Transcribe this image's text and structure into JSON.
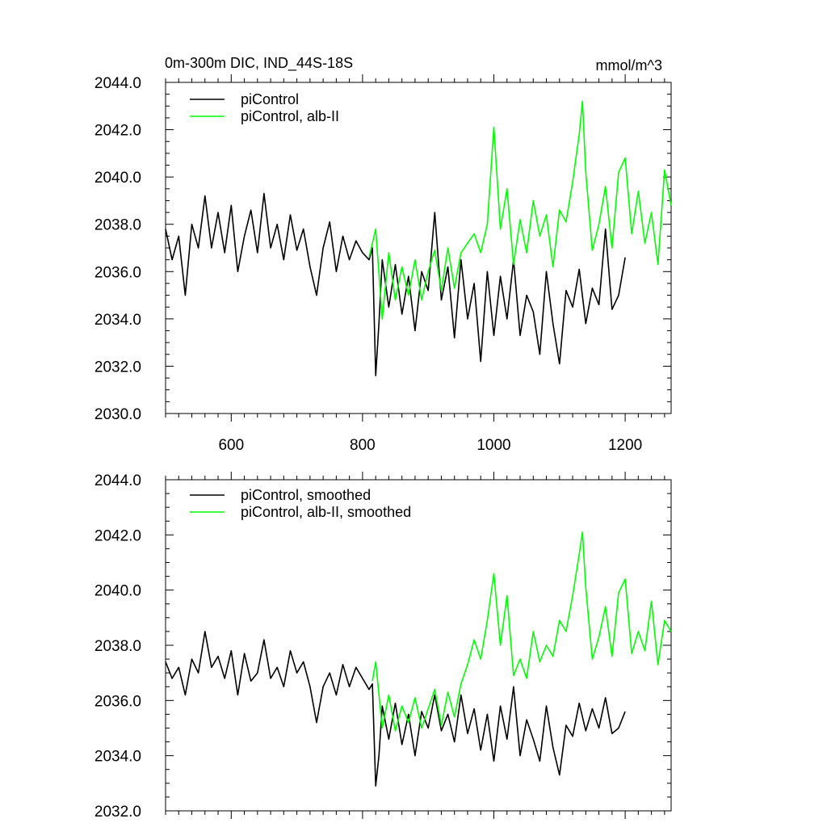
{
  "chart_data": [
    {
      "type": "line",
      "title_left": "0m-300m DIC, IND_44S-18S",
      "title_right": "mmol/m^3",
      "xlim": [
        500,
        1270
      ],
      "ylim": [
        2030.0,
        2044.0
      ],
      "x_ticks": [
        600,
        800,
        1000,
        1200
      ],
      "x_tick_labels": [
        "600",
        "800",
        "1000",
        "1200"
      ],
      "y_ticks": [
        2030,
        2032,
        2034,
        2036,
        2038,
        2040,
        2042,
        2044
      ],
      "y_tick_labels": [
        "2030.0",
        "2032.0",
        "2034.0",
        "2036.0",
        "2038.0",
        "2040.0",
        "2042.0",
        "2044.0"
      ],
      "legend_position": "top-left",
      "series": [
        {
          "name": "piControl",
          "color": "#000000",
          "x": [
            500,
            510,
            520,
            530,
            540,
            550,
            560,
            570,
            580,
            590,
            600,
            610,
            620,
            630,
            640,
            650,
            660,
            670,
            680,
            690,
            700,
            710,
            720,
            730,
            740,
            750,
            760,
            770,
            780,
            790,
            800,
            810,
            815,
            820,
            825,
            830,
            840,
            850,
            860,
            870,
            880,
            890,
            900,
            910,
            920,
            930,
            940,
            950,
            960,
            970,
            980,
            990,
            1000,
            1010,
            1020,
            1030,
            1040,
            1050,
            1060,
            1070,
            1080,
            1090,
            1100,
            1110,
            1120,
            1130,
            1140,
            1150,
            1160,
            1170,
            1180,
            1190,
            1200
          ],
          "y": [
            2037.8,
            2036.5,
            2037.5,
            2035.0,
            2038.0,
            2037.0,
            2039.2,
            2037.0,
            2038.5,
            2036.8,
            2038.8,
            2036.0,
            2037.5,
            2038.6,
            2036.8,
            2039.3,
            2037.0,
            2038.0,
            2036.5,
            2038.4,
            2036.9,
            2037.8,
            2036.2,
            2035.0,
            2037.0,
            2038.1,
            2036.0,
            2037.5,
            2036.5,
            2037.3,
            2036.8,
            2036.5,
            2037.0,
            2031.6,
            2033.8,
            2036.5,
            2034.5,
            2036.3,
            2034.2,
            2035.8,
            2033.5,
            2036.0,
            2035.2,
            2038.5,
            2034.8,
            2036.2,
            2033.2,
            2036.5,
            2034.0,
            2035.5,
            2032.2,
            2036.0,
            2033.3,
            2035.8,
            2034.0,
            2036.5,
            2033.3,
            2035.0,
            2034.3,
            2032.5,
            2036.0,
            2033.8,
            2032.1,
            2035.2,
            2034.5,
            2036.1,
            2033.8,
            2035.3,
            2034.6,
            2037.8,
            2034.4,
            2035.0,
            2036.6
          ]
        },
        {
          "name": "piControl, alb-II",
          "color": "#00ff00",
          "x": [
            810,
            820,
            830,
            840,
            850,
            860,
            870,
            880,
            890,
            900,
            910,
            920,
            930,
            940,
            950,
            960,
            970,
            980,
            990,
            1000,
            1010,
            1020,
            1030,
            1040,
            1050,
            1060,
            1070,
            1080,
            1090,
            1100,
            1110,
            1120,
            1130,
            1135,
            1140,
            1150,
            1160,
            1170,
            1180,
            1190,
            1200,
            1210,
            1220,
            1230,
            1240,
            1250,
            1260,
            1270
          ],
          "y": [
            2036.6,
            2037.8,
            2034.0,
            2036.8,
            2034.8,
            2036.2,
            2035.0,
            2036.5,
            2034.8,
            2036.0,
            2036.9,
            2035.2,
            2037.0,
            2035.3,
            2036.8,
            2037.2,
            2037.6,
            2036.8,
            2038.0,
            2042.1,
            2037.8,
            2039.5,
            2036.3,
            2038.2,
            2036.8,
            2039.0,
            2037.5,
            2038.4,
            2036.2,
            2038.6,
            2038.1,
            2039.8,
            2041.8,
            2043.2,
            2040.2,
            2036.9,
            2038.0,
            2039.6,
            2037.0,
            2040.2,
            2040.8,
            2037.6,
            2039.4,
            2037.2,
            2038.5,
            2036.3,
            2040.3,
            2038.8
          ]
        }
      ]
    },
    {
      "type": "line",
      "xlim": [
        500,
        1270
      ],
      "ylim": [
        2032.0,
        2044.0
      ],
      "x_ticks": [
        600,
        800,
        1000,
        1200
      ],
      "y_ticks": [
        2032,
        2034,
        2036,
        2038,
        2040,
        2042,
        2044
      ],
      "y_tick_labels": [
        "2032.0",
        "2034.0",
        "2036.0",
        "2038.0",
        "2040.0",
        "2042.0",
        "2044.0"
      ],
      "legend_position": "top-left",
      "series": [
        {
          "name": "piControl, smoothed",
          "color": "#000000",
          "x": [
            500,
            510,
            520,
            530,
            540,
            550,
            560,
            570,
            580,
            590,
            600,
            610,
            620,
            630,
            640,
            650,
            660,
            670,
            680,
            690,
            700,
            710,
            720,
            730,
            740,
            750,
            760,
            770,
            780,
            790,
            800,
            810,
            815,
            820,
            825,
            830,
            840,
            850,
            860,
            870,
            880,
            890,
            900,
            910,
            920,
            930,
            940,
            950,
            960,
            970,
            980,
            990,
            1000,
            1010,
            1020,
            1030,
            1040,
            1050,
            1060,
            1070,
            1080,
            1090,
            1100,
            1110,
            1120,
            1130,
            1140,
            1150,
            1160,
            1170,
            1180,
            1190,
            1200
          ],
          "y": [
            2037.4,
            2036.8,
            2037.2,
            2036.2,
            2037.5,
            2037.0,
            2038.5,
            2037.2,
            2037.6,
            2036.8,
            2037.8,
            2036.2,
            2037.7,
            2036.7,
            2037.0,
            2038.2,
            2036.8,
            2037.2,
            2036.5,
            2037.8,
            2037.0,
            2037.4,
            2036.5,
            2035.2,
            2036.5,
            2037.0,
            2036.2,
            2037.3,
            2036.5,
            2037.2,
            2036.8,
            2036.4,
            2036.6,
            2032.9,
            2034.0,
            2035.8,
            2034.6,
            2035.9,
            2034.4,
            2035.5,
            2034.0,
            2035.6,
            2035.0,
            2036.2,
            2034.9,
            2035.5,
            2034.5,
            2036.2,
            2034.8,
            2035.7,
            2034.2,
            2035.5,
            2033.8,
            2035.8,
            2034.6,
            2036.5,
            2034.0,
            2035.3,
            2034.6,
            2033.8,
            2035.8,
            2034.3,
            2033.3,
            2035.1,
            2034.7,
            2035.9,
            2034.9,
            2035.7,
            2035.0,
            2036.1,
            2034.8,
            2035.0,
            2035.6
          ]
        },
        {
          "name": "piControl, alb-II, smoothed",
          "color": "#00ff00",
          "x": [
            815,
            820,
            830,
            840,
            850,
            860,
            870,
            880,
            890,
            900,
            910,
            920,
            930,
            940,
            950,
            960,
            970,
            980,
            990,
            1000,
            1010,
            1020,
            1030,
            1040,
            1050,
            1060,
            1070,
            1080,
            1090,
            1100,
            1110,
            1120,
            1130,
            1135,
            1140,
            1150,
            1160,
            1170,
            1180,
            1190,
            1200,
            1210,
            1220,
            1230,
            1240,
            1250,
            1260,
            1270
          ],
          "y": [
            2036.7,
            2037.4,
            2035.0,
            2036.2,
            2034.9,
            2035.8,
            2035.2,
            2036.1,
            2035.0,
            2035.7,
            2036.4,
            2035.1,
            2036.3,
            2035.4,
            2036.6,
            2037.3,
            2038.2,
            2037.5,
            2038.9,
            2040.6,
            2038.0,
            2039.8,
            2036.9,
            2037.5,
            2036.8,
            2038.5,
            2037.4,
            2038.0,
            2037.6,
            2038.9,
            2038.5,
            2039.8,
            2041.3,
            2042.1,
            2040.1,
            2037.5,
            2038.3,
            2039.4,
            2037.6,
            2039.9,
            2040.4,
            2037.7,
            2038.5,
            2037.8,
            2039.6,
            2037.3,
            2038.9,
            2038.5
          ]
        }
      ]
    }
  ]
}
